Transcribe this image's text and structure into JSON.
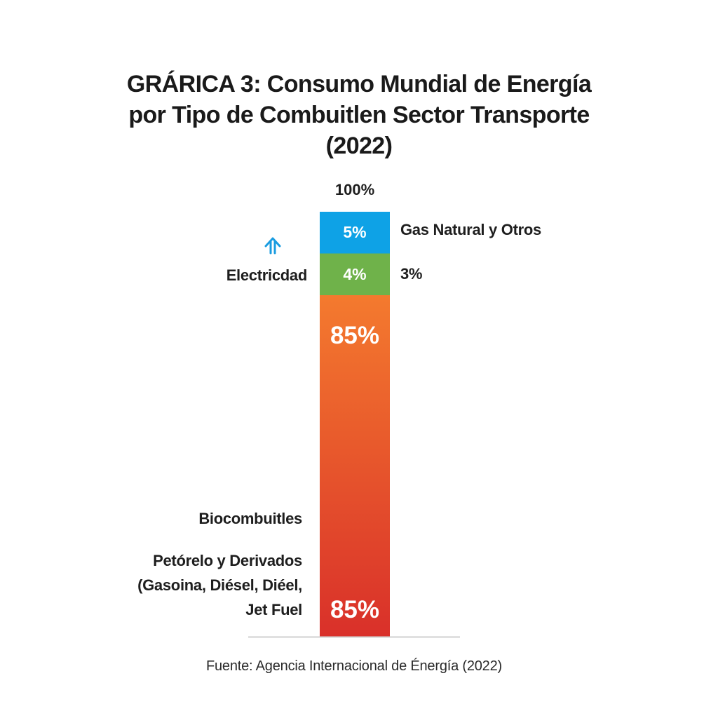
{
  "chart_data": {
    "type": "bar",
    "stacked": true,
    "title": [
      "GRÁRICA 3: Consumo Mundial de Energía",
      "por Tipo de Combuitlen Sector Transporte",
      "(2022)"
    ],
    "total_label": "100%",
    "ylim": [
      0,
      100
    ],
    "segments": [
      {
        "name": "Gas Natural y Otros",
        "value": 5,
        "label": "5%",
        "color": "#0ea2e6"
      },
      {
        "name": "Electricdad",
        "value": 4,
        "label": "4%",
        "color": "#6fb24a",
        "side_label": "3%"
      },
      {
        "name": "Petórelo y Derivados",
        "value": 85,
        "label": "85%",
        "color_top": "#f47a2e",
        "color_bottom": "#d9302a"
      }
    ],
    "bottom_value_label": "85%",
    "left_labels": {
      "electricidad": "Electricdad",
      "biocombustibles": "Biocombuitles",
      "petroleo": [
        "Petórelo y Derivados",
        "(Gasoina, Diésel, Diéel,",
        "Jet Fuel"
      ]
    },
    "right_labels": {
      "gas": "Gas Natural y Otros",
      "side_pct": "3%"
    },
    "icon": {
      "name": "up-arrow-icon",
      "color": "#1a9ce0"
    },
    "source": "Fuente: Agencia Internacional de Énergía (2022)",
    "grid": false,
    "baseline_color": "#cfcfcf"
  }
}
